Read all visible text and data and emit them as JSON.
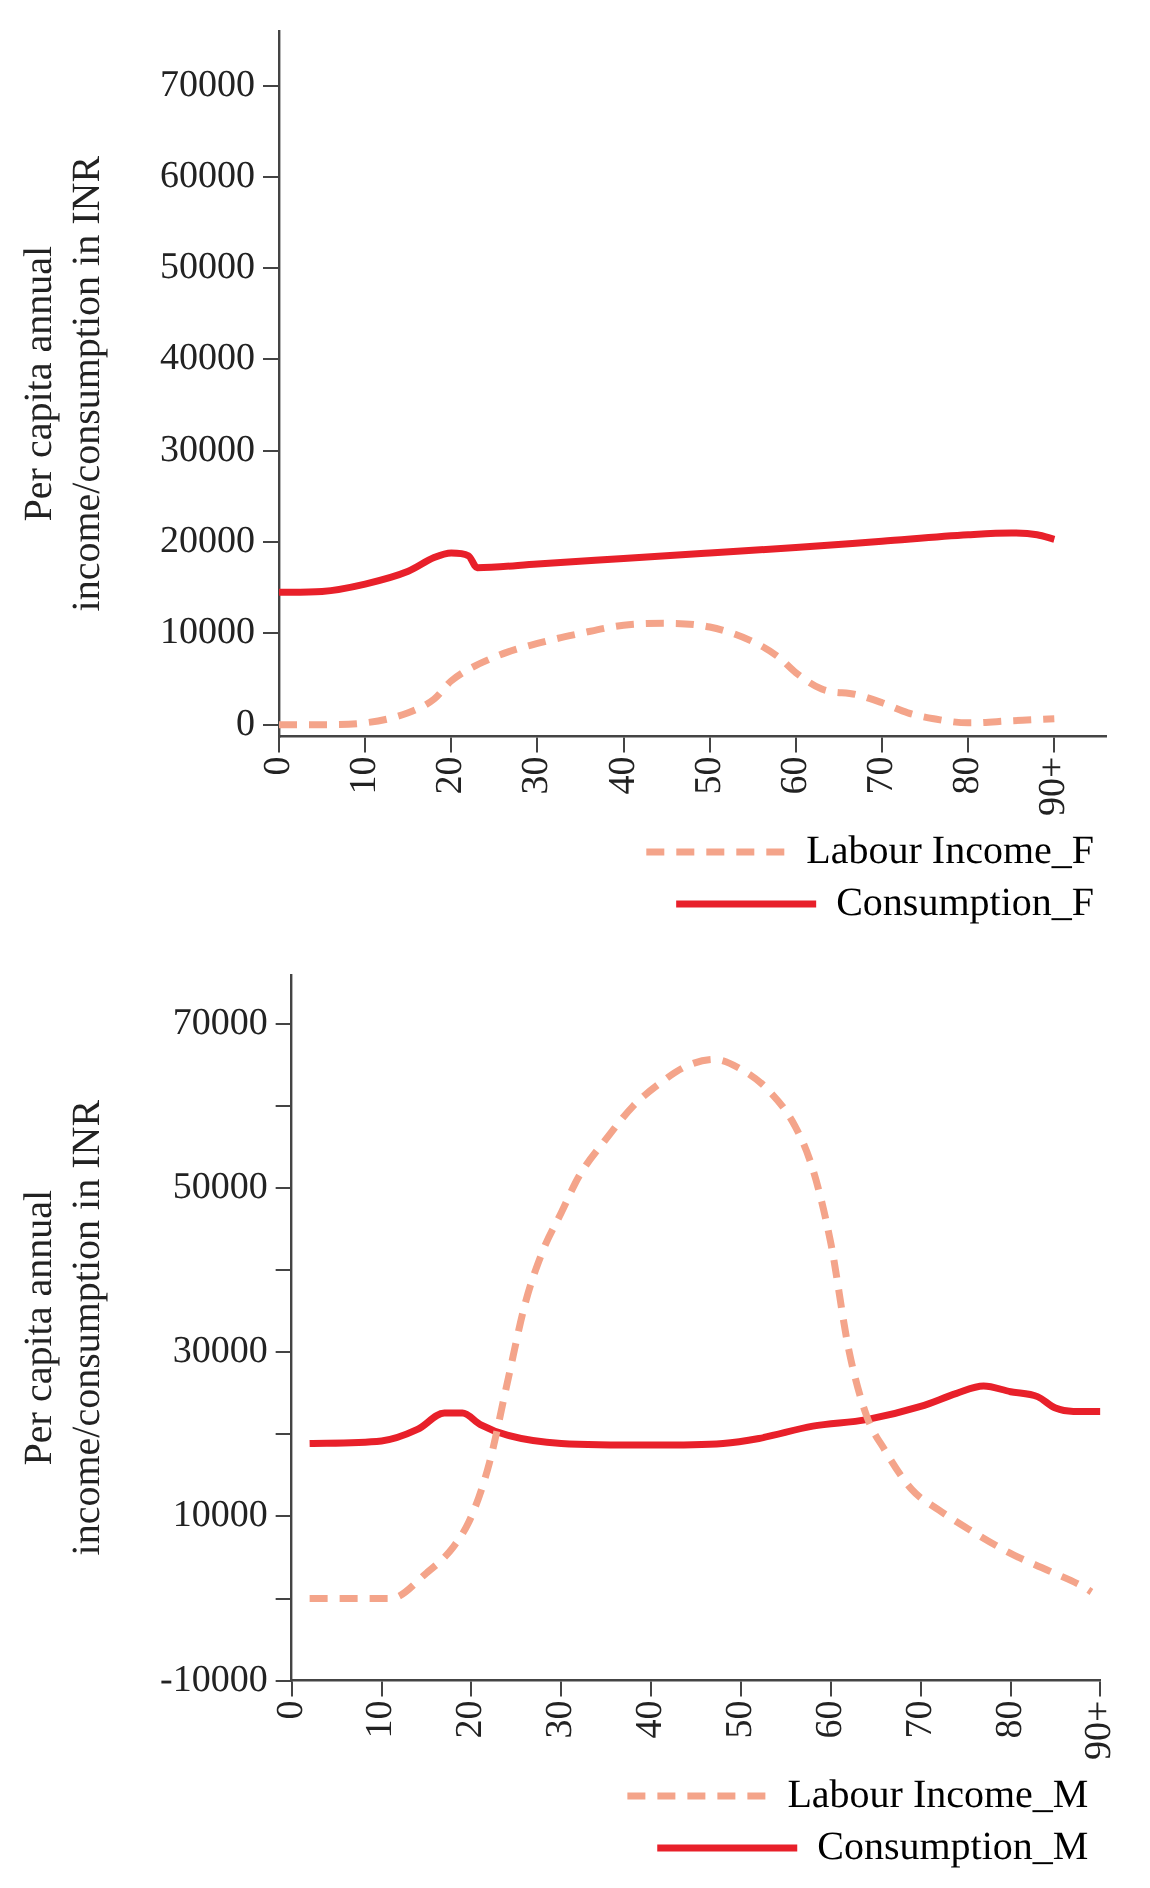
{
  "chart_data": [
    {
      "type": "line",
      "ylabel": "Per capita annual income/consumption in INR",
      "xlim": [
        0,
        96
      ],
      "xticks": [
        0,
        10,
        20,
        30,
        40,
        50,
        60,
        70,
        80,
        {
          "value": 90,
          "label": "90+"
        }
      ],
      "ylim": [
        -1300,
        76000
      ],
      "yticks": [
        0,
        10000,
        20000,
        30000,
        40000,
        50000,
        60000,
        70000
      ],
      "grid": false,
      "legend": "bottom",
      "marker": "none",
      "series": [
        {
          "name": "Labour Income_F",
          "color": "#f4a48a",
          "line_style": "dashed",
          "x": [
            0,
            5,
            10,
            15,
            18,
            20,
            25,
            30,
            35,
            40,
            45,
            50,
            55,
            58,
            60,
            63,
            67,
            70,
            73,
            76,
            80,
            85,
            90
          ],
          "values": [
            0,
            0,
            200,
            1300,
            2800,
            4800,
            7400,
            8900,
            10000,
            10900,
            11100,
            10700,
            9100,
            7400,
            5700,
            3900,
            3300,
            2400,
            1300,
            650,
            200,
            430,
            650
          ]
        },
        {
          "name": "Consumption_F",
          "color": "#e8202a",
          "line_style": "solid",
          "x": [
            0,
            5,
            10,
            15,
            18,
            20,
            22,
            23,
            30,
            40,
            50,
            60,
            70,
            80,
            85,
            88,
            90
          ],
          "values": [
            14500,
            14600,
            15400,
            16800,
            18300,
            18800,
            18500,
            17200,
            17600,
            18200,
            18800,
            19400,
            20100,
            20800,
            21000,
            20800,
            20300
          ]
        }
      ]
    },
    {
      "type": "line",
      "ylabel": "Per capita annual income/consumption in INR",
      "xlim": [
        0,
        90
      ],
      "xticks": [
        0,
        10,
        20,
        30,
        40,
        50,
        60,
        70,
        80,
        {
          "value": 90,
          "label": "90+"
        }
      ],
      "ylim": [
        -10000,
        76000
      ],
      "yticks": [
        -10000,
        {
          "value": 0,
          "label": null
        },
        10000,
        {
          "value": 20000,
          "label": null
        },
        30000,
        {
          "value": 40000,
          "label": null
        },
        50000,
        {
          "value": 60000,
          "label": null
        },
        70000
      ],
      "grid": false,
      "legend": "bottom",
      "marker": "none",
      "series": [
        {
          "name": "Labour Income_M",
          "color": "#f4a48a",
          "line_style": "dashed",
          "x": [
            2,
            11,
            15,
            18,
            20,
            22,
            24,
            26,
            28,
            30,
            32,
            35,
            38,
            41,
            44,
            47,
            50,
            53,
            56,
            58,
            60,
            62,
            64,
            66,
            69,
            72,
            76,
            80,
            84,
            88,
            89
          ],
          "values": [
            0,
            0,
            3100,
            6300,
            10000,
            16500,
            26300,
            36000,
            42500,
            47000,
            51500,
            56000,
            60000,
            62800,
            64900,
            65700,
            64500,
            62000,
            57600,
            52300,
            43300,
            30300,
            22200,
            18100,
            13300,
            10800,
            8000,
            5500,
            3500,
            1500,
            800
          ]
        },
        {
          "name": "Consumption_M",
          "color": "#e8202a",
          "line_style": "solid",
          "x": [
            2,
            10,
            14,
            17,
            19,
            21,
            24,
            30,
            40,
            48,
            52,
            58,
            64,
            70,
            74,
            77,
            80,
            83,
            85,
            87,
            90
          ],
          "values": [
            18900,
            19200,
            20600,
            22600,
            22600,
            21200,
            19900,
            18900,
            18700,
            18900,
            19500,
            21000,
            21800,
            23400,
            25000,
            25900,
            25200,
            24600,
            23200,
            22800,
            22800
          ]
        }
      ]
    }
  ]
}
